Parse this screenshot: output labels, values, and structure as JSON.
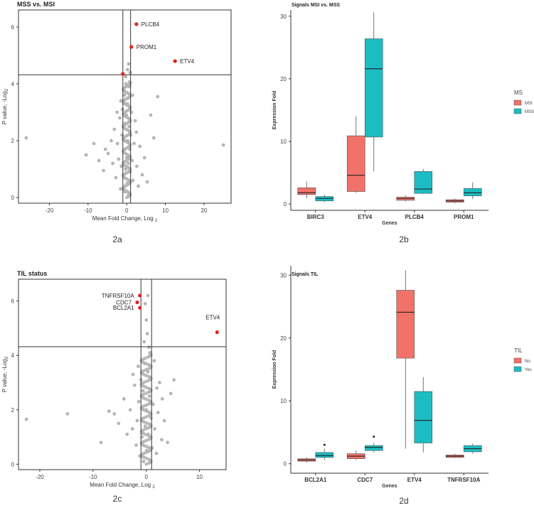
{
  "colors": {
    "grid_point": "#b5b5b5",
    "highlight": "#e0231d",
    "msi": "#f07268",
    "mss": "#1bbdc2",
    "no": "#f07268",
    "yes": "#1bbdc2"
  },
  "chart_data": [
    {
      "id": "2a",
      "type": "scatter",
      "title": "MSS vs. MSI",
      "caption": "2a",
      "xlabel": "Mean Fold Change, Log",
      "xlabel_sub": "2",
      "ylabel": "P value, -Log",
      "ylabel_sub": "2",
      "xlim": [
        -28,
        27
      ],
      "ylim": [
        -0.2,
        6.6
      ],
      "xticks": [
        -20,
        -10,
        0,
        10,
        20
      ],
      "yticks": [
        0,
        2,
        4,
        6
      ],
      "vlines": [
        -1,
        1
      ],
      "hline": 4.32,
      "highlights": [
        {
          "label": "PLCB4",
          "x": 2.5,
          "y": 6.1
        },
        {
          "label": "PROM1",
          "x": 1.2,
          "y": 5.3
        },
        {
          "label": "ETV4",
          "x": 12.5,
          "y": 4.8
        },
        {
          "label": "",
          "x": -1.0,
          "y": 4.35
        }
      ],
      "points": [
        [
          -26,
          2.1
        ],
        [
          25,
          1.85
        ],
        [
          -10.5,
          1.5
        ],
        [
          -8.5,
          1.9
        ],
        [
          -7.2,
          1.3
        ],
        [
          -6.0,
          0.95
        ],
        [
          -5.5,
          1.7
        ],
        [
          -4.8,
          1.55
        ],
        [
          -4.0,
          2.0
        ],
        [
          -3.6,
          1.2
        ],
        [
          -3.2,
          2.4
        ],
        [
          -2.8,
          0.7
        ],
        [
          -2.4,
          1.9
        ],
        [
          -2.1,
          1.35
        ],
        [
          -1.8,
          2.8
        ],
        [
          -1.6,
          0.3
        ],
        [
          -1.4,
          1.1
        ],
        [
          -1.2,
          2.2
        ],
        [
          -1.1,
          3.1
        ],
        [
          -0.9,
          0.8
        ],
        [
          -0.8,
          1.6
        ],
        [
          -0.6,
          3.6
        ],
        [
          -0.5,
          2.6
        ],
        [
          -0.4,
          0.2
        ],
        [
          -0.3,
          1.0
        ],
        [
          -0.2,
          4.0
        ],
        [
          -0.1,
          2.9
        ],
        [
          0.0,
          1.4
        ],
        [
          0.1,
          0.5
        ],
        [
          0.2,
          3.3
        ],
        [
          0.3,
          2.0
        ],
        [
          0.4,
          1.2
        ],
        [
          0.5,
          0.1
        ],
        [
          0.6,
          2.5
        ],
        [
          0.7,
          3.9
        ],
        [
          0.8,
          1.7
        ],
        [
          0.9,
          0.9
        ],
        [
          1.0,
          2.2
        ],
        [
          1.2,
          3.0
        ],
        [
          1.4,
          1.3
        ],
        [
          1.6,
          0.6
        ],
        [
          1.9,
          1.9
        ],
        [
          2.2,
          2.7
        ],
        [
          2.6,
          1.1
        ],
        [
          3.0,
          0.4
        ],
        [
          3.4,
          1.8
        ],
        [
          4.0,
          0.8
        ],
        [
          4.6,
          1.4
        ],
        [
          5.3,
          0.55
        ],
        [
          7.0,
          2.1
        ],
        [
          8.0,
          3.55
        ],
        [
          6.2,
          2.9
        ],
        [
          -1.5,
          3.4
        ],
        [
          0.5,
          4.7
        ],
        [
          0.2,
          4.5
        ],
        [
          -0.3,
          4.25
        ],
        [
          0.9,
          4.4
        ],
        [
          1.5,
          3.6
        ],
        [
          -2.5,
          3.0
        ],
        [
          2.5,
          2.3
        ]
      ]
    },
    {
      "id": "2b",
      "type": "box",
      "title": "Signals MSI vs. MSS",
      "caption": "2b",
      "xlabel": "Genes",
      "ylabel": "Expression Fold",
      "ylim": [
        -1,
        31
      ],
      "yticks": [
        0,
        10,
        20,
        30
      ],
      "categories": [
        "BIRC3",
        "ETV4",
        "PLCB4",
        "PROM1"
      ],
      "legend": {
        "title": "MS",
        "position": "right",
        "entries": [
          "MSI",
          "MSS"
        ]
      },
      "series": [
        {
          "name": "MSI",
          "boxes": [
            {
              "min": 0.9,
              "q1": 1.5,
              "median": 1.8,
              "q3": 2.6,
              "max": 3.6,
              "outliers": []
            },
            {
              "min": 1.8,
              "q1": 2.0,
              "median": 4.6,
              "q3": 10.9,
              "max": 14.0,
              "outliers": []
            },
            {
              "min": 0.4,
              "q1": 0.6,
              "median": 0.9,
              "q3": 1.1,
              "max": 1.4,
              "outliers": []
            },
            {
              "min": 0.1,
              "q1": 0.3,
              "median": 0.5,
              "q3": 0.7,
              "max": 0.9,
              "outliers": []
            }
          ]
        },
        {
          "name": "MSS",
          "boxes": [
            {
              "min": 0.3,
              "q1": 0.5,
              "median": 0.9,
              "q3": 1.2,
              "max": 1.5,
              "outliers": []
            },
            {
              "min": 5.2,
              "q1": 10.7,
              "median": 21.6,
              "q3": 26.4,
              "max": 30.6,
              "outliers": []
            },
            {
              "min": 1.6,
              "q1": 1.7,
              "median": 2.4,
              "q3": 5.2,
              "max": 5.6,
              "outliers": []
            },
            {
              "min": 0.8,
              "q1": 1.3,
              "median": 1.8,
              "q3": 2.5,
              "max": 3.5,
              "outliers": []
            }
          ]
        }
      ]
    },
    {
      "id": "2c",
      "type": "scatter",
      "title": "TIL status",
      "caption": "2c",
      "xlabel": "Mean Fold Change, Log",
      "xlabel_sub": "2",
      "ylabel": "P value, -Log",
      "ylabel_sub": "2",
      "xlim": [
        -24,
        15
      ],
      "ylim": [
        -0.2,
        6.8
      ],
      "xticks": [
        -20,
        -10,
        0,
        10
      ],
      "yticks": [
        0,
        2,
        4,
        6
      ],
      "vlines": [
        -1,
        1
      ],
      "hline": 4.32,
      "highlights": [
        {
          "label": "TNFRSF10A",
          "x": -1.2,
          "y": 6.2
        },
        {
          "label": "CDC7",
          "x": -1.7,
          "y": 5.95
        },
        {
          "label": "BCL2A1",
          "x": -1.2,
          "y": 5.75
        },
        {
          "label": "ETV4",
          "x": 13.3,
          "y": 4.85
        }
      ],
      "points": [
        [
          -22.5,
          1.65
        ],
        [
          -14.8,
          1.85
        ],
        [
          -8.5,
          0.8
        ],
        [
          -7.0,
          1.95
        ],
        [
          -6.0,
          1.85
        ],
        [
          -5.2,
          1.5
        ],
        [
          -4.2,
          2.4
        ],
        [
          -3.6,
          1.1
        ],
        [
          -3.0,
          2.0
        ],
        [
          -2.6,
          1.3
        ],
        [
          -2.2,
          2.9
        ],
        [
          -1.9,
          0.7
        ],
        [
          -1.7,
          1.6
        ],
        [
          -1.4,
          2.3
        ],
        [
          -1.2,
          0.3
        ],
        [
          -1.0,
          3.1
        ],
        [
          -0.8,
          1.0
        ],
        [
          -0.6,
          2.7
        ],
        [
          -0.5,
          0.1
        ],
        [
          -0.3,
          3.7
        ],
        [
          -0.2,
          1.4
        ],
        [
          0.0,
          2.0
        ],
        [
          0.1,
          0.5
        ],
        [
          0.3,
          3.4
        ],
        [
          0.4,
          1.1
        ],
        [
          0.6,
          2.5
        ],
        [
          0.7,
          4.1
        ],
        [
          0.9,
          1.7
        ],
        [
          1.1,
          0.6
        ],
        [
          1.3,
          2.2
        ],
        [
          1.6,
          1.3
        ],
        [
          1.9,
          0.4
        ],
        [
          2.2,
          1.9
        ],
        [
          2.5,
          3.0
        ],
        [
          2.9,
          0.9
        ],
        [
          3.4,
          1.6
        ],
        [
          4.0,
          0.8
        ],
        [
          4.6,
          2.6
        ],
        [
          5.2,
          3.1
        ],
        [
          3.0,
          2.4
        ],
        [
          -1.5,
          3.6
        ],
        [
          0.5,
          4.3
        ],
        [
          0.2,
          4.8
        ],
        [
          0.0,
          5.3
        ],
        [
          -0.2,
          5.9
        ],
        [
          0.3,
          6.2
        ],
        [
          -0.4,
          4.5
        ],
        [
          1.5,
          3.8
        ],
        [
          -2.5,
          3.3
        ],
        [
          2.0,
          2.8
        ]
      ]
    },
    {
      "id": "2d",
      "type": "box",
      "title": "Signals TIL",
      "caption": "2d",
      "xlabel": "Genes",
      "ylabel": "Expression Fold",
      "ylim": [
        -1.5,
        31.5
      ],
      "yticks": [
        0,
        10,
        20,
        30
      ],
      "categories": [
        "BCL2A1",
        "CDC7",
        "ETV4",
        "TNFRSF10A"
      ],
      "legend": {
        "title": "TIL",
        "position": "right",
        "entries": [
          "No",
          "Yes"
        ]
      },
      "series": [
        {
          "name": "No",
          "boxes": [
            {
              "min": 0.2,
              "q1": 0.4,
              "median": 0.6,
              "q3": 0.8,
              "max": 1.0,
              "outliers": []
            },
            {
              "min": 0.6,
              "q1": 0.8,
              "median": 1.2,
              "q3": 1.6,
              "max": 2.1,
              "outliers": []
            },
            {
              "min": 2.4,
              "q1": 16.8,
              "median": 24.1,
              "q3": 27.6,
              "max": 30.8,
              "outliers": []
            },
            {
              "min": 0.9,
              "q1": 1.0,
              "median": 1.2,
              "q3": 1.4,
              "max": 1.6,
              "outliers": []
            }
          ]
        },
        {
          "name": "Yes",
          "boxes": [
            {
              "min": 0.6,
              "q1": 1.0,
              "median": 1.3,
              "q3": 1.8,
              "max": 2.4,
              "outliers": [
                3.0
              ]
            },
            {
              "min": 1.8,
              "q1": 2.1,
              "median": 2.6,
              "q3": 2.9,
              "max": 3.3,
              "outliers": [
                4.3
              ]
            },
            {
              "min": 1.8,
              "q1": 3.3,
              "median": 6.9,
              "q3": 11.5,
              "max": 13.8,
              "outliers": []
            },
            {
              "min": 1.6,
              "q1": 1.9,
              "median": 2.4,
              "q3": 2.9,
              "max": 3.2,
              "outliers": []
            }
          ]
        }
      ]
    }
  ]
}
